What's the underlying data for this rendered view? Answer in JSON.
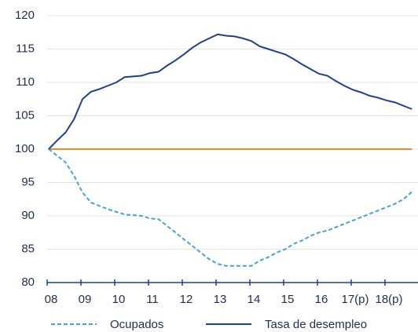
{
  "chart_data": {
    "type": "line",
    "categories": [
      "08",
      null,
      null,
      null,
      "09",
      null,
      null,
      null,
      "10",
      null,
      null,
      null,
      "11",
      null,
      null,
      null,
      "12",
      null,
      null,
      null,
      "13",
      null,
      null,
      null,
      "14",
      null,
      null,
      null,
      "15",
      null,
      null,
      null,
      "16",
      null,
      null,
      null,
      "17(p)",
      null,
      null,
      null,
      "18(p)",
      null,
      null,
      null
    ],
    "series": [
      {
        "name": "Ocupados",
        "color": "#4a9fd8",
        "dash": true,
        "values": [
          100,
          99,
          98,
          96,
          93.5,
          92,
          91.5,
          91,
          90.6,
          90.2,
          90.1,
          90,
          89.6,
          89.5,
          88.5,
          87.5,
          86.5,
          85.5,
          84.5,
          83.5,
          82.8,
          82.5,
          82.5,
          82.5,
          82.5,
          83.3,
          83.8,
          84.5,
          85,
          85.8,
          86.3,
          87,
          87.5,
          87.8,
          88.3,
          88.8,
          89.3,
          89.8,
          90.3,
          90.8,
          91.3,
          91.8,
          92.5,
          93.6
        ]
      },
      {
        "name": "Tasa de desempleo",
        "color": "#1f3f8f",
        "dash": false,
        "values": [
          100,
          101.3,
          102.5,
          104.5,
          107.5,
          108.6,
          109,
          109.5,
          110,
          110.8,
          110.9,
          111,
          111.4,
          111.6,
          112.5,
          113.3,
          114.2,
          115.2,
          116,
          116.6,
          117.2,
          117,
          116.9,
          116.6,
          116.2,
          115.4,
          115,
          114.6,
          114.2,
          113.5,
          112.7,
          112,
          111.3,
          111,
          110.2,
          109.5,
          108.9,
          108.5,
          108,
          107.7,
          107.3,
          107,
          106.5,
          106
        ]
      },
      {
        "color": "#f08a24",
        "dash": false,
        "values": [
          100,
          100,
          100,
          100,
          100,
          100,
          100,
          100,
          100,
          100,
          100,
          100,
          100,
          100,
          100,
          100,
          100,
          100,
          100,
          100,
          100,
          100,
          100,
          100,
          100,
          100,
          100,
          100,
          100,
          100,
          100,
          100,
          100,
          100,
          100,
          100,
          100,
          100,
          100,
          100,
          100,
          100,
          100,
          100
        ]
      }
    ],
    "ylim": [
      80,
      120
    ],
    "yticks": [
      80,
      85,
      90,
      95,
      100,
      105,
      110,
      115,
      120
    ],
    "grid": true
  }
}
